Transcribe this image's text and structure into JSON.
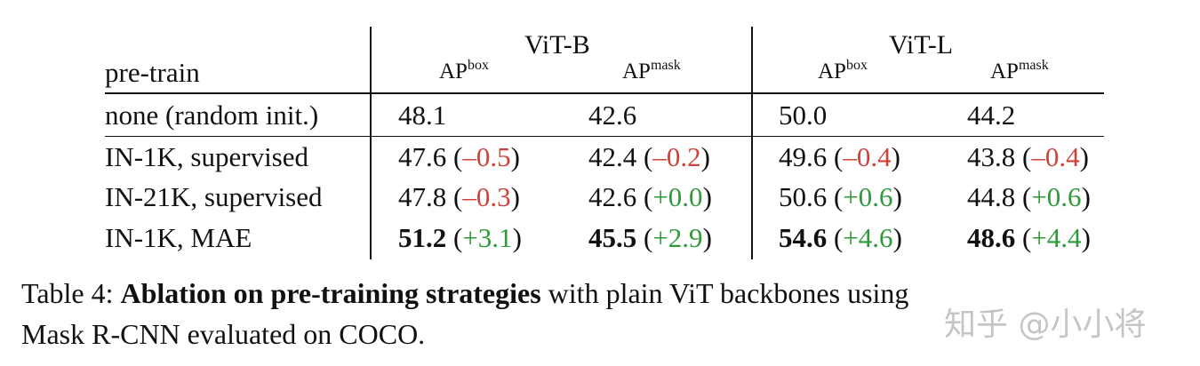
{
  "table": {
    "header": {
      "row_label": "pre-train",
      "groups": [
        {
          "name": "ViT-B",
          "metrics": [
            {
              "base": "AP",
              "sup": "box"
            },
            {
              "base": "AP",
              "sup": "mask"
            }
          ]
        },
        {
          "name": "ViT-L",
          "metrics": [
            {
              "base": "AP",
              "sup": "box"
            },
            {
              "base": "AP",
              "sup": "mask"
            }
          ]
        }
      ]
    },
    "rows": [
      {
        "label": "none (random init.)",
        "cells": [
          {
            "value": "48.1",
            "delta": "",
            "delta_sign": "",
            "bold": false
          },
          {
            "value": "42.6",
            "delta": "",
            "delta_sign": "",
            "bold": false
          },
          {
            "value": "50.0",
            "delta": "",
            "delta_sign": "",
            "bold": false
          },
          {
            "value": "44.2",
            "delta": "",
            "delta_sign": "",
            "bold": false
          }
        ]
      },
      {
        "label": "IN-1K, supervised",
        "cells": [
          {
            "value": "47.6",
            "delta": "–0.5",
            "delta_sign": "neg",
            "bold": false
          },
          {
            "value": "42.4",
            "delta": "–0.2",
            "delta_sign": "neg",
            "bold": false
          },
          {
            "value": "49.6",
            "delta": "–0.4",
            "delta_sign": "neg",
            "bold": false
          },
          {
            "value": "43.8",
            "delta": "–0.4",
            "delta_sign": "neg",
            "bold": false
          }
        ]
      },
      {
        "label": "IN-21K, supervised",
        "cells": [
          {
            "value": "47.8",
            "delta": "–0.3",
            "delta_sign": "neg",
            "bold": false
          },
          {
            "value": "42.6",
            "delta": "+0.0",
            "delta_sign": "pos",
            "bold": false
          },
          {
            "value": "50.6",
            "delta": "+0.6",
            "delta_sign": "pos",
            "bold": false
          },
          {
            "value": "44.8",
            "delta": "+0.6",
            "delta_sign": "pos",
            "bold": false
          }
        ]
      },
      {
        "label": "IN-1K, MAE",
        "cells": [
          {
            "value": "51.2",
            "delta": "+3.1",
            "delta_sign": "pos",
            "bold": true
          },
          {
            "value": "45.5",
            "delta": "+2.9",
            "delta_sign": "pos",
            "bold": true
          },
          {
            "value": "54.6",
            "delta": "+4.6",
            "delta_sign": "pos",
            "bold": true
          },
          {
            "value": "48.6",
            "delta": "+4.4",
            "delta_sign": "pos",
            "bold": true
          }
        ]
      }
    ]
  },
  "caption": {
    "line1_prefix": "Table 4: ",
    "line1_bold": "Ablation on pre-training strategies",
    "line1_rest": " with plain ViT backbones using",
    "line2": "Mask R-CNN evaluated on COCO."
  },
  "watermark": "知乎 @小小将",
  "colors": {
    "negative": "#d0413a",
    "positive": "#2e9a3a",
    "text": "#111111"
  }
}
